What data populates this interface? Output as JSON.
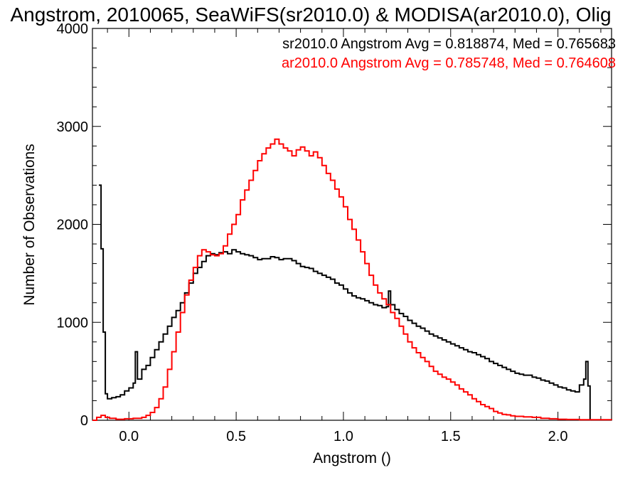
{
  "chart_data": {
    "type": "line",
    "title": "Angstrom, 2010065, SeaWiFS(sr2010.0) & MODISA(ar2010.0), Olig",
    "xlabel": "Angstrom ()",
    "ylabel": "Number of Observations",
    "xlim": [
      -0.17,
      2.25
    ],
    "ylim": [
      0,
      4000
    ],
    "xticks": [
      0.0,
      0.5,
      1.0,
      1.5,
      2.0
    ],
    "xtick_labels": [
      "0.0",
      "0.5",
      "1.0",
      "1.5",
      "2.0"
    ],
    "yticks": [
      0,
      1000,
      2000,
      3000,
      4000
    ],
    "ytick_labels": [
      "0",
      "1000",
      "2000",
      "3000",
      "4000"
    ],
    "grid": false,
    "legend_position": "top-right",
    "series": [
      {
        "name": "sr2010.0",
        "color": "#000000",
        "annotation": "sr2010.0 Angstrom Avg = 0.818874, Med = 0.765683",
        "points": [
          [
            -0.14,
            2400
          ],
          [
            -0.13,
            1750
          ],
          [
            -0.12,
            900
          ],
          [
            -0.11,
            270
          ],
          [
            -0.1,
            220
          ],
          [
            -0.08,
            230
          ],
          [
            -0.06,
            240
          ],
          [
            -0.04,
            260
          ],
          [
            -0.02,
            300
          ],
          [
            0.0,
            330
          ],
          [
            0.02,
            380
          ],
          [
            0.03,
            700
          ],
          [
            0.04,
            420
          ],
          [
            0.06,
            520
          ],
          [
            0.08,
            560
          ],
          [
            0.1,
            640
          ],
          [
            0.12,
            720
          ],
          [
            0.14,
            800
          ],
          [
            0.16,
            880
          ],
          [
            0.18,
            960
          ],
          [
            0.2,
            1050
          ],
          [
            0.22,
            1120
          ],
          [
            0.24,
            1200
          ],
          [
            0.26,
            1300
          ],
          [
            0.28,
            1400
          ],
          [
            0.3,
            1500
          ],
          [
            0.32,
            1560
          ],
          [
            0.34,
            1620
          ],
          [
            0.36,
            1680
          ],
          [
            0.38,
            1700
          ],
          [
            0.4,
            1690
          ],
          [
            0.42,
            1710
          ],
          [
            0.44,
            1720
          ],
          [
            0.46,
            1700
          ],
          [
            0.48,
            1740
          ],
          [
            0.5,
            1720
          ],
          [
            0.52,
            1700
          ],
          [
            0.54,
            1690
          ],
          [
            0.56,
            1680
          ],
          [
            0.58,
            1660
          ],
          [
            0.6,
            1640
          ],
          [
            0.62,
            1650
          ],
          [
            0.64,
            1650
          ],
          [
            0.66,
            1670
          ],
          [
            0.68,
            1660
          ],
          [
            0.7,
            1640
          ],
          [
            0.72,
            1650
          ],
          [
            0.74,
            1650
          ],
          [
            0.76,
            1630
          ],
          [
            0.78,
            1600
          ],
          [
            0.8,
            1570
          ],
          [
            0.82,
            1560
          ],
          [
            0.84,
            1550
          ],
          [
            0.86,
            1520
          ],
          [
            0.88,
            1500
          ],
          [
            0.9,
            1480
          ],
          [
            0.92,
            1460
          ],
          [
            0.94,
            1440
          ],
          [
            0.96,
            1400
          ],
          [
            0.98,
            1380
          ],
          [
            1.0,
            1340
          ],
          [
            1.02,
            1300
          ],
          [
            1.04,
            1270
          ],
          [
            1.06,
            1250
          ],
          [
            1.08,
            1240
          ],
          [
            1.1,
            1220
          ],
          [
            1.12,
            1200
          ],
          [
            1.14,
            1180
          ],
          [
            1.16,
            1170
          ],
          [
            1.18,
            1150
          ],
          [
            1.2,
            1160
          ],
          [
            1.21,
            1320
          ],
          [
            1.22,
            1180
          ],
          [
            1.24,
            1130
          ],
          [
            1.26,
            1090
          ],
          [
            1.28,
            1060
          ],
          [
            1.3,
            1020
          ],
          [
            1.32,
            990
          ],
          [
            1.34,
            960
          ],
          [
            1.36,
            940
          ],
          [
            1.38,
            910
          ],
          [
            1.4,
            880
          ],
          [
            1.42,
            860
          ],
          [
            1.44,
            840
          ],
          [
            1.46,
            820
          ],
          [
            1.48,
            800
          ],
          [
            1.5,
            780
          ],
          [
            1.52,
            760
          ],
          [
            1.54,
            740
          ],
          [
            1.56,
            720
          ],
          [
            1.58,
            700
          ],
          [
            1.6,
            690
          ],
          [
            1.62,
            670
          ],
          [
            1.64,
            650
          ],
          [
            1.66,
            630
          ],
          [
            1.68,
            600
          ],
          [
            1.7,
            580
          ],
          [
            1.72,
            560
          ],
          [
            1.74,
            540
          ],
          [
            1.76,
            520
          ],
          [
            1.78,
            500
          ],
          [
            1.8,
            480
          ],
          [
            1.82,
            470
          ],
          [
            1.84,
            460
          ],
          [
            1.86,
            460
          ],
          [
            1.88,
            440
          ],
          [
            1.9,
            430
          ],
          [
            1.92,
            410
          ],
          [
            1.94,
            400
          ],
          [
            1.96,
            380
          ],
          [
            1.98,
            360
          ],
          [
            2.0,
            340
          ],
          [
            2.02,
            330
          ],
          [
            2.04,
            310
          ],
          [
            2.06,
            300
          ],
          [
            2.08,
            290
          ],
          [
            2.1,
            360
          ],
          [
            2.12,
            420
          ],
          [
            2.13,
            600
          ],
          [
            2.14,
            350
          ],
          [
            2.15,
            0
          ]
        ]
      },
      {
        "name": "ar2010.0",
        "color": "#ff0000",
        "annotation": "ar2010.0 Angstrom Avg = 0.785748, Med = 0.764608",
        "points": [
          [
            -0.17,
            0
          ],
          [
            -0.15,
            30
          ],
          [
            -0.13,
            50
          ],
          [
            -0.11,
            30
          ],
          [
            -0.09,
            20
          ],
          [
            -0.06,
            10
          ],
          [
            -0.02,
            15
          ],
          [
            0.02,
            20
          ],
          [
            0.06,
            30
          ],
          [
            0.08,
            50
          ],
          [
            0.1,
            80
          ],
          [
            0.12,
            130
          ],
          [
            0.14,
            220
          ],
          [
            0.16,
            340
          ],
          [
            0.18,
            520
          ],
          [
            0.2,
            700
          ],
          [
            0.22,
            900
          ],
          [
            0.24,
            1100
          ],
          [
            0.26,
            1280
          ],
          [
            0.28,
            1430
          ],
          [
            0.3,
            1560
          ],
          [
            0.32,
            1680
          ],
          [
            0.34,
            1740
          ],
          [
            0.36,
            1720
          ],
          [
            0.38,
            1690
          ],
          [
            0.4,
            1680
          ],
          [
            0.42,
            1700
          ],
          [
            0.44,
            1780
          ],
          [
            0.46,
            1900
          ],
          [
            0.48,
            2000
          ],
          [
            0.5,
            2100
          ],
          [
            0.52,
            2250
          ],
          [
            0.54,
            2350
          ],
          [
            0.56,
            2450
          ],
          [
            0.58,
            2550
          ],
          [
            0.6,
            2650
          ],
          [
            0.62,
            2720
          ],
          [
            0.64,
            2780
          ],
          [
            0.66,
            2820
          ],
          [
            0.68,
            2870
          ],
          [
            0.7,
            2820
          ],
          [
            0.72,
            2780
          ],
          [
            0.74,
            2750
          ],
          [
            0.76,
            2700
          ],
          [
            0.78,
            2760
          ],
          [
            0.8,
            2790
          ],
          [
            0.82,
            2750
          ],
          [
            0.84,
            2700
          ],
          [
            0.86,
            2740
          ],
          [
            0.88,
            2680
          ],
          [
            0.9,
            2600
          ],
          [
            0.92,
            2520
          ],
          [
            0.94,
            2450
          ],
          [
            0.96,
            2360
          ],
          [
            0.98,
            2280
          ],
          [
            1.0,
            2180
          ],
          [
            1.02,
            2050
          ],
          [
            1.04,
            1950
          ],
          [
            1.06,
            1840
          ],
          [
            1.08,
            1720
          ],
          [
            1.1,
            1600
          ],
          [
            1.12,
            1480
          ],
          [
            1.14,
            1380
          ],
          [
            1.16,
            1300
          ],
          [
            1.18,
            1240
          ],
          [
            1.2,
            1180
          ],
          [
            1.22,
            1100
          ],
          [
            1.24,
            1040
          ],
          [
            1.26,
            960
          ],
          [
            1.28,
            880
          ],
          [
            1.3,
            800
          ],
          [
            1.32,
            740
          ],
          [
            1.34,
            690
          ],
          [
            1.36,
            640
          ],
          [
            1.38,
            600
          ],
          [
            1.4,
            550
          ],
          [
            1.42,
            500
          ],
          [
            1.44,
            470
          ],
          [
            1.46,
            440
          ],
          [
            1.48,
            420
          ],
          [
            1.5,
            390
          ],
          [
            1.52,
            360
          ],
          [
            1.54,
            320
          ],
          [
            1.56,
            290
          ],
          [
            1.58,
            260
          ],
          [
            1.6,
            220
          ],
          [
            1.62,
            190
          ],
          [
            1.64,
            160
          ],
          [
            1.66,
            140
          ],
          [
            1.68,
            120
          ],
          [
            1.7,
            90
          ],
          [
            1.72,
            75
          ],
          [
            1.74,
            60
          ],
          [
            1.76,
            55
          ],
          [
            1.78,
            45
          ],
          [
            1.8,
            40
          ],
          [
            1.84,
            35
          ],
          [
            1.88,
            30
          ],
          [
            1.92,
            20
          ],
          [
            1.96,
            15
          ],
          [
            2.0,
            10
          ],
          [
            2.04,
            8
          ],
          [
            2.1,
            5
          ],
          [
            2.25,
            2
          ]
        ]
      }
    ]
  }
}
